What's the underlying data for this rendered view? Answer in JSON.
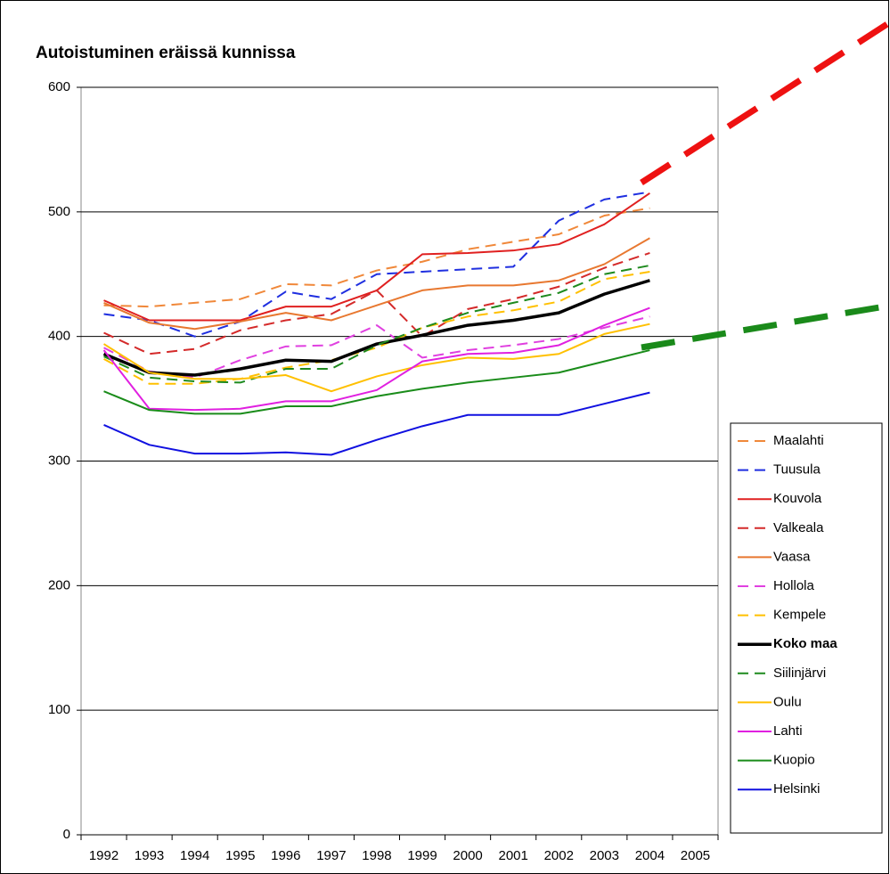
{
  "chart_data": {
    "type": "line",
    "title": "Autoistuminen eräissä kunnissa",
    "categories": [
      "1992",
      "1993",
      "1994",
      "1995",
      "1996",
      "1997",
      "1998",
      "1999",
      "2000",
      "2001",
      "2002",
      "2003",
      "2004",
      "2005"
    ],
    "ylim": [
      0,
      600
    ],
    "yticks": [
      0,
      100,
      200,
      300,
      400,
      500,
      600
    ],
    "grid": true,
    "series": [
      {
        "name": "Maalahti",
        "color": "#f0883a",
        "dash": true,
        "width": 2,
        "values": [
          425,
          424,
          427,
          430,
          442,
          441,
          453,
          460,
          470,
          476,
          482,
          497,
          503,
          null
        ]
      },
      {
        "name": "Tuusula",
        "color": "#1f2fe0",
        "dash": true,
        "width": 2,
        "values": [
          418,
          413,
          400,
          412,
          436,
          430,
          450,
          452,
          454,
          456,
          493,
          510,
          516,
          null
        ]
      },
      {
        "name": "Kouvola",
        "color": "#e02020",
        "dash": false,
        "width": 2,
        "values": [
          429,
          413,
          413,
          413,
          424,
          424,
          437,
          466,
          467,
          469,
          474,
          490,
          515,
          null
        ]
      },
      {
        "name": "Valkeala",
        "color": "#d42a2a",
        "dash": true,
        "width": 2,
        "values": [
          403,
          386,
          390,
          405,
          413,
          418,
          437,
          400,
          422,
          430,
          440,
          455,
          467,
          null
        ]
      },
      {
        "name": "Vaasa",
        "color": "#e87830",
        "dash": false,
        "width": 2,
        "values": [
          427,
          411,
          406,
          412,
          419,
          413,
          425,
          437,
          441,
          441,
          445,
          458,
          479,
          null
        ]
      },
      {
        "name": "Hollola",
        "color": "#e040e0",
        "dash": true,
        "width": 2,
        "values": [
          391,
          372,
          367,
          381,
          392,
          393,
          409,
          383,
          389,
          393,
          398,
          407,
          416,
          null
        ]
      },
      {
        "name": "Kempele",
        "color": "#ffc000",
        "dash": true,
        "width": 2,
        "values": [
          382,
          362,
          362,
          366,
          375,
          381,
          391,
          407,
          416,
          421,
          428,
          446,
          452,
          null
        ]
      },
      {
        "name": "Koko maa",
        "color": "#000000",
        "dash": false,
        "width": 3.5,
        "bold": true,
        "values": [
          386,
          371,
          369,
          374,
          381,
          380,
          394,
          401,
          409,
          413,
          419,
          434,
          445,
          null
        ]
      },
      {
        "name": "Siilinjärvi",
        "color": "#1e8a1e",
        "dash": true,
        "width": 2,
        "values": [
          384,
          367,
          364,
          363,
          374,
          374,
          393,
          407,
          419,
          427,
          435,
          450,
          457,
          null
        ]
      },
      {
        "name": "Oulu",
        "color": "#ffc000",
        "dash": false,
        "width": 2,
        "values": [
          394,
          371,
          366,
          366,
          369,
          356,
          368,
          377,
          383,
          382,
          386,
          402,
          410,
          null
        ]
      },
      {
        "name": "Lahti",
        "color": "#e020e0",
        "dash": false,
        "width": 2,
        "values": [
          389,
          342,
          341,
          342,
          348,
          348,
          357,
          380,
          386,
          387,
          393,
          409,
          423,
          null
        ]
      },
      {
        "name": "Kuopio",
        "color": "#1a8c1a",
        "dash": false,
        "width": 2,
        "values": [
          356,
          341,
          338,
          338,
          344,
          344,
          352,
          358,
          363,
          367,
          371,
          380,
          389,
          null
        ]
      },
      {
        "name": "Helsinki",
        "color": "#1010e0",
        "dash": false,
        "width": 2,
        "values": [
          329,
          313,
          306,
          306,
          307,
          305,
          317,
          328,
          337,
          337,
          337,
          346,
          355,
          null
        ]
      }
    ]
  }
}
